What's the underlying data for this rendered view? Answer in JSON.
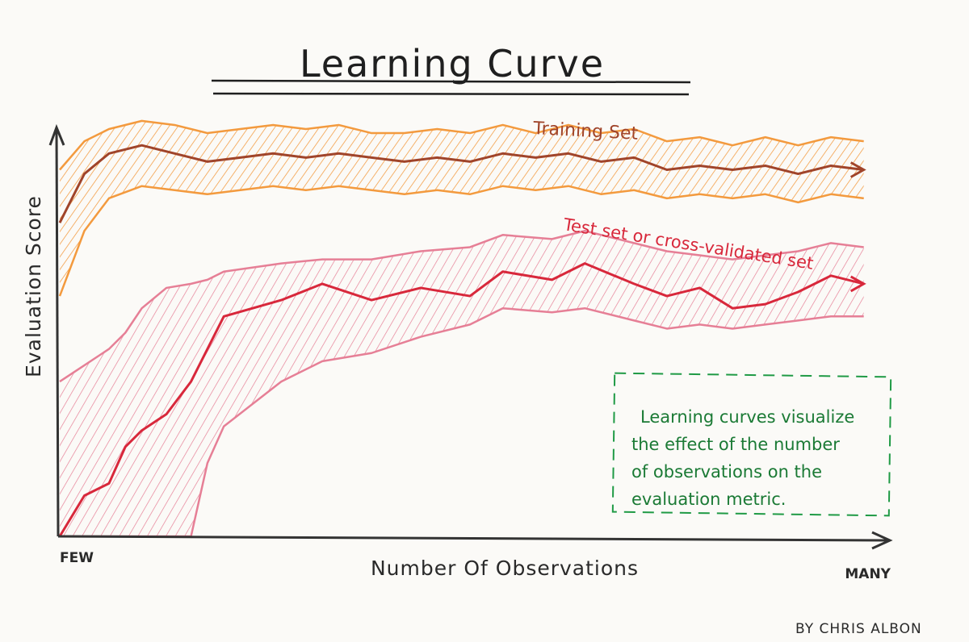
{
  "chart_data": {
    "type": "line",
    "title": "Learning Curve",
    "xlabel": "Number Of Observations",
    "ylabel": "Evaluation Score",
    "xticks": [
      "FEW",
      "MANY"
    ],
    "xlim": [
      0,
      100
    ],
    "ylim": [
      0,
      100
    ],
    "grid": false,
    "series": [
      {
        "name": "Training Set",
        "color": "#a0442a",
        "band_color": "#f39a3e",
        "x": [
          0,
          3,
          6,
          10,
          14,
          18,
          22,
          26,
          30,
          34,
          38,
          42,
          46,
          50,
          54,
          58,
          62,
          66,
          70,
          74,
          78,
          82,
          86,
          90,
          94,
          98
        ],
        "y": [
          77,
          89,
          94,
          96,
          94,
          92,
          93,
          94,
          93,
          94,
          93,
          92,
          93,
          92,
          94,
          93,
          94,
          92,
          93,
          90,
          91,
          90,
          91,
          89,
          91,
          90
        ],
        "upper": [
          90,
          97,
          100,
          102,
          101,
          99,
          100,
          101,
          100,
          101,
          99,
          99,
          100,
          99,
          101,
          99,
          101,
          99,
          100,
          97,
          98,
          96,
          98,
          96,
          98,
          97
        ],
        "lower": [
          59,
          75,
          83,
          86,
          85,
          84,
          85,
          86,
          85,
          86,
          85,
          84,
          85,
          84,
          86,
          85,
          86,
          84,
          85,
          83,
          84,
          83,
          84,
          82,
          84,
          83
        ]
      },
      {
        "name": "Test set or cross-validated set",
        "color": "#d8283b",
        "band_color": "#e67f96",
        "x": [
          0,
          3,
          6,
          8,
          10,
          13,
          16,
          18,
          20,
          27,
          32,
          38,
          44,
          50,
          54,
          60,
          64,
          70,
          74,
          78,
          82,
          86,
          90,
          94,
          98
        ],
        "y": [
          0,
          10,
          13,
          22,
          26,
          30,
          38,
          46,
          54,
          58,
          62,
          58,
          61,
          59,
          65,
          63,
          67,
          62,
          59,
          61,
          56,
          57,
          60,
          64,
          62
        ],
        "upper": [
          38,
          42,
          46,
          50,
          56,
          61,
          62,
          63,
          65,
          67,
          68,
          68,
          70,
          71,
          74,
          73,
          75,
          72,
          70,
          69,
          68,
          69,
          70,
          72,
          71
        ],
        "lower": [
          -20,
          -20,
          -20,
          -20,
          -20,
          -10,
          0,
          18,
          27,
          38,
          43,
          45,
          49,
          52,
          56,
          55,
          56,
          53,
          51,
          52,
          51,
          52,
          53,
          54,
          54
        ]
      }
    ],
    "annotations": {
      "training_label": "Training Set",
      "test_label": "Test set or cross-validated set",
      "note_lines": [
        "Learning curves visualize",
        "the effect of the number",
        "of observations on the",
        "evaluation metric."
      ]
    },
    "credit": "BY CHRIS ALBON"
  }
}
